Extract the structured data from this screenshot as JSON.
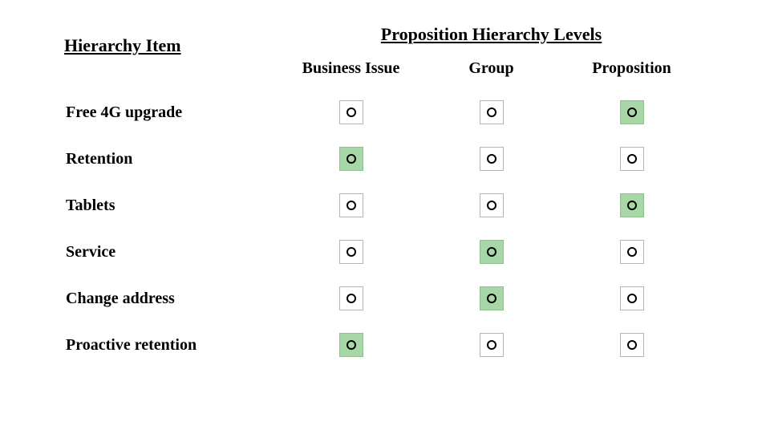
{
  "headers": {
    "item_header": "Hierarchy Item",
    "levels_title": "Proposition Hierarchy Levels",
    "columns": [
      "Business Issue",
      "Group",
      "Proposition"
    ]
  },
  "colors": {
    "background": "#ffffff",
    "text": "#000000",
    "box_border": "#b5b5b5",
    "selected_fill": "#a7d7a7",
    "selected_border": "#8fbf8f",
    "circle_stroke": "#000000"
  },
  "rows": [
    {
      "label": "Free 4G upgrade",
      "selection": [
        false,
        false,
        true
      ]
    },
    {
      "label": "Retention",
      "selection": [
        true,
        false,
        false
      ]
    },
    {
      "label": "Tablets",
      "selection": [
        false,
        false,
        true
      ]
    },
    {
      "label": "Service",
      "selection": [
        false,
        true,
        false
      ]
    },
    {
      "label": "Change address",
      "selection": [
        false,
        true,
        false
      ]
    },
    {
      "label": "Proactive retention",
      "selection": [
        true,
        false,
        false
      ]
    }
  ]
}
